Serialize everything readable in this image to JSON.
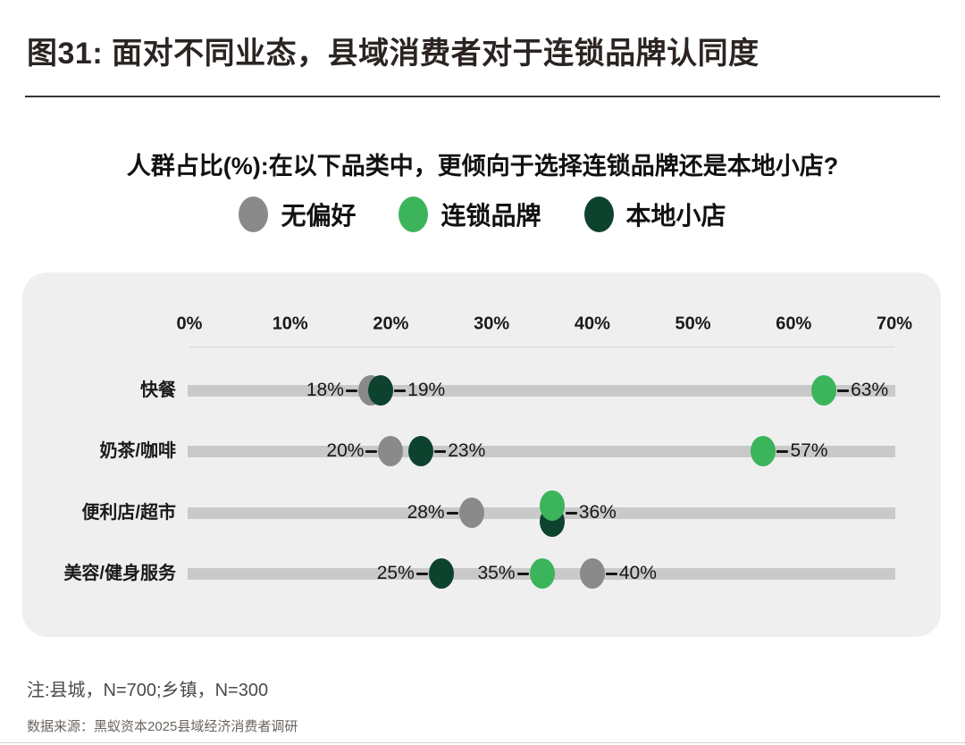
{
  "header": {
    "title": "图31: 面对不同业态，县域消费者对于连锁品牌认同度",
    "question": "人群占比(%):在以下品类中，更倾向于选择连锁品牌还是本地小店?"
  },
  "chart_data": {
    "type": "scatter",
    "title": "人群占比(%):在以下品类中，更倾向于选择连锁品牌还是本地小店?",
    "xlabel": "人群占比(%)",
    "xlim": [
      0,
      70
    ],
    "x_ticks": [
      "0%",
      "10%",
      "20%",
      "30%",
      "40%",
      "50%",
      "60%",
      "70%"
    ],
    "grid": false,
    "legend_position": "top-center",
    "categories": [
      "快餐",
      "奶茶/咖啡",
      "便利店/超市",
      "美容/健身服务"
    ],
    "series": [
      {
        "key": "no-preference",
        "name": "无偏好",
        "color": "#8a8a8a",
        "values": [
          18,
          20,
          28,
          40
        ]
      },
      {
        "key": "chain-brand",
        "name": "连锁品牌",
        "color": "#3cb45c",
        "values": [
          63,
          57,
          36,
          35
        ]
      },
      {
        "key": "local-store",
        "name": "本地小店",
        "color": "#0d432e",
        "values": [
          19,
          23,
          36,
          25
        ]
      }
    ],
    "rows": [
      {
        "category": "快餐",
        "points": [
          {
            "series": 0,
            "value": 18,
            "label": "18%",
            "label_side": "left"
          },
          {
            "series": 2,
            "value": 19,
            "label": "19%",
            "label_side": "right"
          },
          {
            "series": 1,
            "value": 63,
            "label": "63%",
            "label_side": "right"
          }
        ]
      },
      {
        "category": "奶茶/咖啡",
        "points": [
          {
            "series": 0,
            "value": 20,
            "label": "20%",
            "label_side": "left"
          },
          {
            "series": 2,
            "value": 23,
            "label": "23%",
            "label_side": "right"
          },
          {
            "series": 1,
            "value": 57,
            "label": "57%",
            "label_side": "right"
          }
        ]
      },
      {
        "category": "便利店/超市",
        "points": [
          {
            "series": 0,
            "value": 28,
            "label": "28%",
            "label_side": "left"
          },
          {
            "series": 2,
            "value": 36,
            "label": "36%",
            "label_side": "none",
            "dy": 10
          },
          {
            "series": 1,
            "value": 36,
            "label": "36%",
            "label_side": "right",
            "dy": -8
          }
        ]
      },
      {
        "category": "美容/健身服务",
        "points": [
          {
            "series": 2,
            "value": 25,
            "label": "25%",
            "label_side": "left"
          },
          {
            "series": 1,
            "value": 35,
            "label": "35%",
            "label_side": "left"
          },
          {
            "series": 0,
            "value": 40,
            "label": "40%",
            "label_side": "right"
          }
        ]
      }
    ]
  },
  "footer": {
    "note": "注:县城，N=700;乡镇，N=300",
    "source": "数据来源：黑蚁资本2025县域经济消费者调研"
  },
  "colors": {
    "no_preference": "#8a8a8a",
    "chain_brand": "#3cb45c",
    "local_store": "#0d432e",
    "panel_background": "#efefef",
    "track": "#c9c9c9",
    "title_text": "#2b2422"
  }
}
